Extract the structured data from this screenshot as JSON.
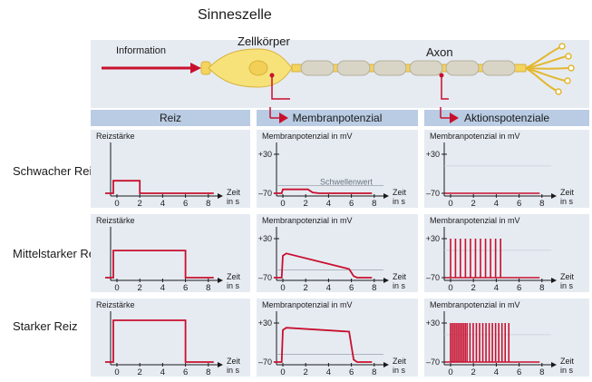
{
  "title": "Sinneszelle",
  "neuron": {
    "information_label": "Information",
    "soma_label": "Zellkörper",
    "axon_label": "Axon"
  },
  "columns": [
    "Reiz",
    "Membranpotenzial",
    "Aktionspotenziale"
  ],
  "rows": [
    "Schwacher Reiz",
    "Mittelstarker Reiz",
    "Starker Reiz"
  ],
  "panel_labels": {
    "stimulus_y": "Reizstärke",
    "membrane_y": "Membranpotenzial in mV",
    "x_label_line1": "Zeit",
    "x_label_line2": "in s",
    "threshold_label": "Schwellenwert"
  },
  "chart_data": {
    "type": "line",
    "x_ticks": [
      0,
      2,
      4,
      6,
      8
    ],
    "x_unit": "s",
    "y_ticks_mV": [
      30,
      -70
    ],
    "y_tick_labels": [
      "+30",
      "–70"
    ],
    "stimulus": [
      {
        "row": "Schwacher Reiz",
        "start_s": 0,
        "end_s": 2,
        "level": 0.3
      },
      {
        "row": "Mittelstarker Reiz",
        "start_s": 0,
        "end_s": 6,
        "level": 0.65
      },
      {
        "row": "Starker Reiz",
        "start_s": 0,
        "end_s": 6,
        "level": 1.0
      }
    ],
    "membrane_potential": [
      {
        "row": "Schwacher Reiz",
        "points": [
          [
            -0.8,
            -70
          ],
          [
            -0.1,
            -70
          ],
          [
            0,
            -60
          ],
          [
            2.2,
            -60
          ],
          [
            2.6,
            -68
          ],
          [
            3.2,
            -70
          ],
          [
            7.8,
            -70
          ]
        ]
      },
      {
        "row": "Mittelstarker Reiz",
        "points": [
          [
            -0.8,
            -70
          ],
          [
            -0.1,
            -70
          ],
          [
            0,
            -14
          ],
          [
            0.3,
            -8
          ],
          [
            5.8,
            -48
          ],
          [
            6.2,
            -66
          ],
          [
            6.5,
            -70
          ],
          [
            7.8,
            -70
          ]
        ]
      },
      {
        "row": "Starker Reiz",
        "points": [
          [
            -0.8,
            -70
          ],
          [
            -0.1,
            -70
          ],
          [
            0,
            12
          ],
          [
            0.3,
            18
          ],
          [
            5.8,
            8
          ],
          [
            6.2,
            -64
          ],
          [
            6.5,
            -70
          ],
          [
            7.8,
            -70
          ]
        ]
      }
    ],
    "threshold_mV": -50,
    "action_potentials": [
      {
        "row": "Schwacher Reiz",
        "spikes_s": [],
        "peak_mV": 30,
        "rest_mV": -70,
        "end_s": 7.8
      },
      {
        "row": "Mittelstarker Reiz",
        "spikes_s": [
          0.0,
          0.43,
          0.86,
          1.3,
          1.74,
          2.18,
          2.62,
          3.06,
          3.5,
          3.94,
          4.38
        ],
        "peak_mV": 30,
        "rest_mV": -70,
        "end_s": 7.8
      },
      {
        "row": "Starker Reiz",
        "spikes_s": [
          0.0,
          0.16,
          0.32,
          0.48,
          0.64,
          0.8,
          0.96,
          1.12,
          1.28,
          1.44,
          1.7,
          1.98,
          2.26,
          2.54,
          2.82,
          3.1,
          3.38,
          3.66,
          3.94,
          4.22,
          4.5,
          4.78,
          5.1
        ],
        "peak_mV": 30,
        "rest_mV": -70,
        "end_s": 7.8
      }
    ],
    "colors": {
      "trace": "#c8102e",
      "axis": "#1a1a1a",
      "grid": "#9aa3ad",
      "panel": "#e6ebf2",
      "header": "#b9cce3"
    }
  }
}
